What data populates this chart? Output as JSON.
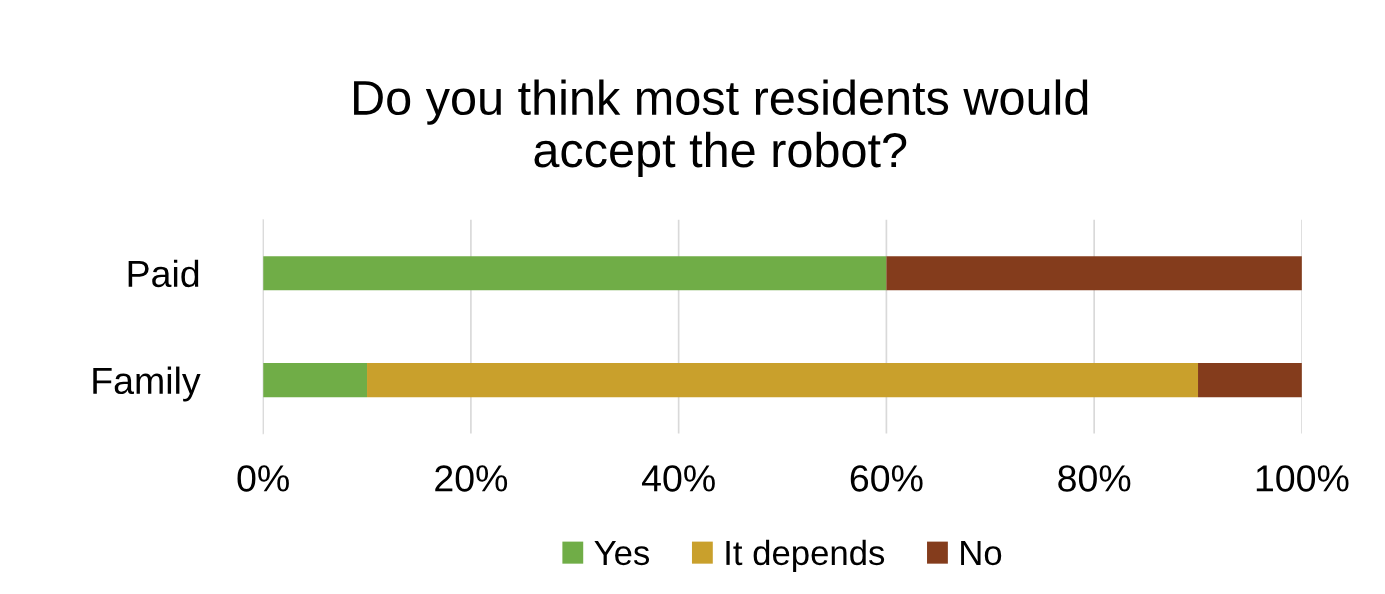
{
  "chart_data": {
    "type": "bar",
    "orientation": "horizontal",
    "stacked": true,
    "title": "Do you think most residents would\naccept the robot?",
    "categories": [
      "Paid",
      "Family"
    ],
    "series": [
      {
        "name": "Yes",
        "color": "#70ad47",
        "values": [
          60,
          10
        ]
      },
      {
        "name": "It depends",
        "color": "#c9a02c",
        "values": [
          0,
          80
        ]
      },
      {
        "name": "No",
        "color": "#843c1c",
        "values": [
          40,
          10
        ]
      }
    ],
    "xlim": [
      0,
      100
    ],
    "xticks": [
      {
        "value": 0,
        "label": "0%"
      },
      {
        "value": 20,
        "label": "20%"
      },
      {
        "value": 40,
        "label": "40%"
      },
      {
        "value": 60,
        "label": "60%"
      },
      {
        "value": 80,
        "label": "80%"
      },
      {
        "value": 100,
        "label": "100%"
      }
    ],
    "grid": "x",
    "legend": "bottom"
  }
}
